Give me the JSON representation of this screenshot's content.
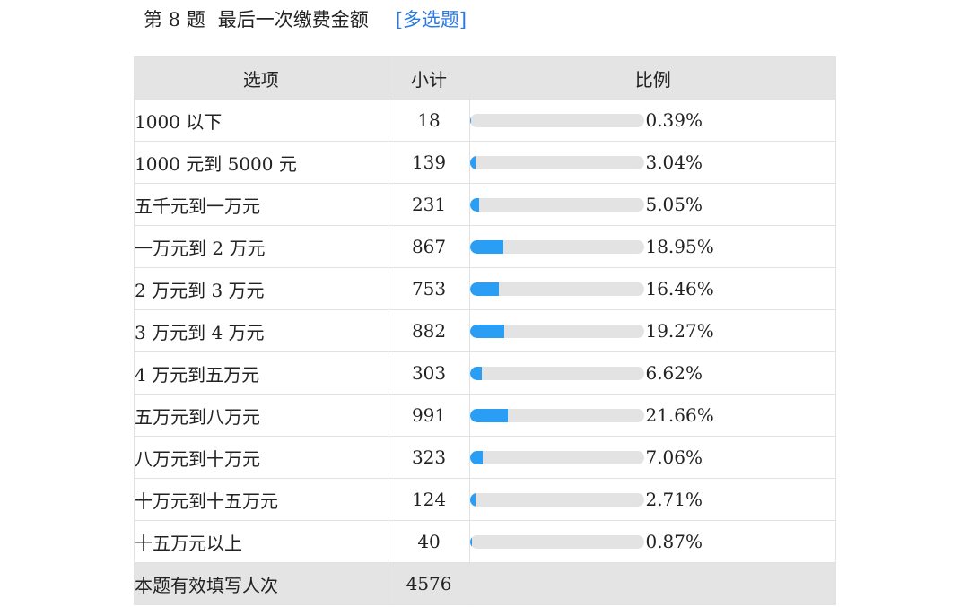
{
  "question": {
    "number": "第 8 题",
    "title": "最后一次缴费金额",
    "type": "[多选题]"
  },
  "table": {
    "headers": {
      "option": "选项",
      "count": "小计",
      "ratio": "比例"
    },
    "rows": [
      {
        "option": "1000 以下",
        "count": "18",
        "percent": "0.39%",
        "value": 0.39
      },
      {
        "option": "1000 元到 5000 元",
        "count": "139",
        "percent": "3.04%",
        "value": 3.04
      },
      {
        "option": "五千元到一万元",
        "count": "231",
        "percent": "5.05%",
        "value": 5.05
      },
      {
        "option": "一万元到 2 万元",
        "count": "867",
        "percent": "18.95%",
        "value": 18.95
      },
      {
        "option": "2 万元到 3 万元",
        "count": "753",
        "percent": "16.46%",
        "value": 16.46
      },
      {
        "option": "3 万元到 4 万元",
        "count": "882",
        "percent": "19.27%",
        "value": 19.27
      },
      {
        "option": "4 万元到五万元",
        "count": "303",
        "percent": "6.62%",
        "value": 6.62
      },
      {
        "option": "五万元到八万元",
        "count": "991",
        "percent": "21.66%",
        "value": 21.66
      },
      {
        "option": "八万元到十万元",
        "count": "323",
        "percent": "7.06%",
        "value": 7.06
      },
      {
        "option": "十万元到十五万元",
        "count": "124",
        "percent": "2.71%",
        "value": 2.71
      },
      {
        "option": "十五万元以上",
        "count": "40",
        "percent": "0.87%",
        "value": 0.87
      }
    ],
    "footer": {
      "label": "本题有效填写人次",
      "count": "4576"
    }
  },
  "colors": {
    "bar_fill": "#2a9df4",
    "bar_track": "#e3e3e3",
    "header_bg": "#e4e4e4",
    "link": "#2a7ae2"
  }
}
